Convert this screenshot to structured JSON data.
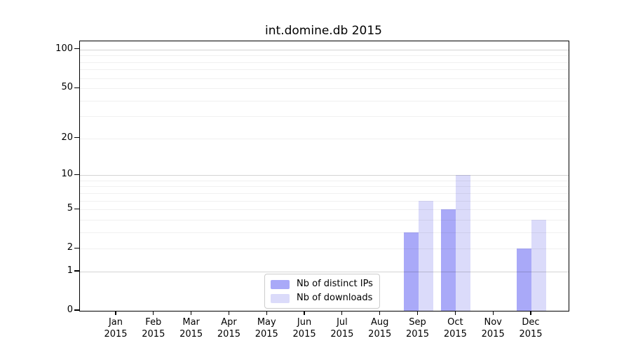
{
  "chart_data": {
    "type": "bar",
    "title": "int.domine.db 2015",
    "categories": [
      "Jan",
      "Feb",
      "Mar",
      "Apr",
      "May",
      "Jun",
      "Jul",
      "Aug",
      "Sep",
      "Oct",
      "Nov",
      "Dec"
    ],
    "x_sublabel": "2015",
    "series": [
      {
        "name": "Nb of distinct IPs",
        "color": "#a9a9f8",
        "values": [
          0,
          0,
          0,
          0,
          0,
          0,
          0,
          0,
          3,
          5,
          0,
          2
        ]
      },
      {
        "name": "Nb of downloads",
        "color": "#dbdbfa",
        "values": [
          0,
          0,
          0,
          0,
          0,
          0,
          0,
          0,
          6,
          10,
          0,
          4
        ]
      }
    ],
    "yscale": "log1p",
    "ylim": [
      0,
      116
    ],
    "yticks": [
      0,
      1,
      2,
      5,
      10,
      20,
      50,
      100
    ],
    "major_gridlines": [
      1,
      10,
      100
    ],
    "minor_gridlines": [
      2,
      3,
      4,
      5,
      6,
      7,
      8,
      9,
      20,
      30,
      40,
      50,
      60,
      70,
      80,
      90
    ],
    "grid": true,
    "legend_position": "lower center",
    "colors": {
      "major_grid": "rgba(0,0,0,0.17)",
      "minor_grid": "rgba(0,0,0,0.06)",
      "axis": "#000000",
      "background": "#ffffff"
    }
  }
}
